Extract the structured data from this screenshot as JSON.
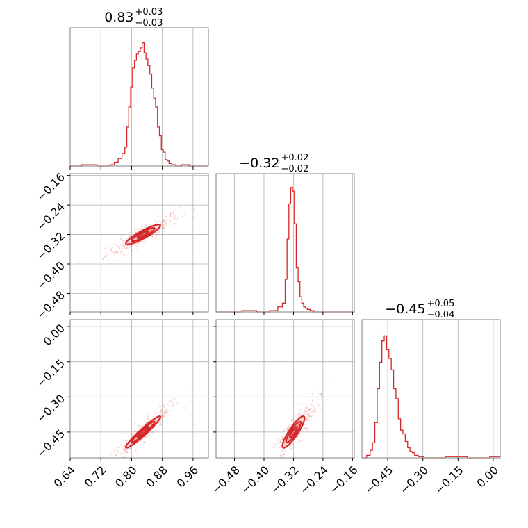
{
  "chart_data": {
    "type": "corner",
    "color": "#d62728",
    "grid": true,
    "params": [
      {
        "title": "0.83",
        "title_plus": "+0.03",
        "title_minus": "−0.03",
        "range": [
          0.64,
          1.0
        ],
        "ticks": [
          0.64,
          0.72,
          0.8,
          0.88,
          0.96
        ],
        "tick_labels": [
          "0.64",
          "0.72",
          "0.80",
          "0.88",
          "0.96"
        ],
        "hist": {
          "x": [
            0.66,
            0.68,
            0.7,
            0.72,
            0.74,
            0.75,
            0.76,
            0.77,
            0.78,
            0.785,
            0.79,
            0.795,
            0.8,
            0.805,
            0.81,
            0.815,
            0.82,
            0.825,
            0.83,
            0.835,
            0.84,
            0.845,
            0.85,
            0.855,
            0.86,
            0.865,
            0.87,
            0.875,
            0.88,
            0.885,
            0.89,
            0.895,
            0.9,
            0.91,
            0.92,
            0.94,
            0.96,
            0.99
          ],
          "density": [
            0.0,
            0.01,
            0.01,
            0.0,
            0.0,
            0.01,
            0.03,
            0.06,
            0.1,
            0.15,
            0.31,
            0.47,
            0.63,
            0.78,
            0.84,
            0.89,
            0.91,
            0.94,
            0.98,
            0.9,
            0.85,
            0.8,
            0.73,
            0.62,
            0.54,
            0.47,
            0.31,
            0.24,
            0.13,
            0.11,
            0.05,
            0.04,
            0.02,
            0.01,
            0.0,
            0.01,
            0.0,
            0.0
          ]
        }
      },
      {
        "title": "−0.32",
        "title_plus": "+0.02",
        "title_minus": "−0.02",
        "range": [
          -0.53,
          -0.155
        ],
        "ticks": [
          -0.48,
          -0.4,
          -0.32,
          -0.24,
          -0.16
        ],
        "tick_labels": [
          "−0.48",
          "−0.40",
          "−0.32",
          "−0.24",
          "−0.16"
        ],
        "hist": {
          "x": [
            -0.52,
            -0.48,
            -0.44,
            -0.4,
            -0.37,
            -0.355,
            -0.345,
            -0.34,
            -0.335,
            -0.33,
            -0.325,
            -0.32,
            -0.315,
            -0.31,
            -0.305,
            -0.3,
            -0.295,
            -0.29,
            -0.285,
            -0.28,
            -0.27,
            -0.26,
            -0.24,
            -0.2
          ],
          "density": [
            0.0,
            0.0,
            0.01,
            0.0,
            0.01,
            0.04,
            0.07,
            0.26,
            0.58,
            0.86,
            0.99,
            0.96,
            0.7,
            0.35,
            0.24,
            0.12,
            0.07,
            0.04,
            0.03,
            0.02,
            0.01,
            0.0,
            0.0,
            0.0
          ]
        }
      },
      {
        "title": "−0.45",
        "title_plus": "+0.05",
        "title_minus": "−0.04",
        "range": [
          -0.56,
          0.03
        ],
        "ticks": [
          -0.45,
          -0.3,
          -0.15,
          0.0
        ],
        "tick_labels": [
          "−0.45",
          "−0.30",
          "−0.15",
          "0.00"
        ],
        "hist": {
          "x": [
            -0.55,
            -0.53,
            -0.52,
            -0.51,
            -0.5,
            -0.49,
            -0.48,
            -0.47,
            -0.46,
            -0.45,
            -0.44,
            -0.43,
            -0.42,
            -0.41,
            -0.4,
            -0.39,
            -0.38,
            -0.37,
            -0.36,
            -0.35,
            -0.34,
            -0.33,
            -0.31,
            -0.28,
            -0.24,
            -0.17,
            -0.05,
            0.02
          ],
          "density": [
            0.0,
            0.02,
            0.06,
            0.12,
            0.28,
            0.55,
            0.76,
            0.93,
            0.97,
            0.86,
            0.79,
            0.7,
            0.55,
            0.47,
            0.31,
            0.22,
            0.19,
            0.13,
            0.08,
            0.05,
            0.04,
            0.02,
            0.01,
            0.0,
            0.0,
            0.01,
            0.0,
            0.01
          ]
        }
      }
    ],
    "pairs": [
      {
        "x_param": 0,
        "y_param": 1,
        "center": [
          0.83,
          -0.32
        ],
        "sd": [
          0.03,
          0.018
        ],
        "rho": 0.9
      },
      {
        "x_param": 0,
        "y_param": 2,
        "center": [
          0.83,
          -0.45
        ],
        "sd": [
          0.03,
          0.045
        ],
        "rho": 0.96
      },
      {
        "x_param": 1,
        "y_param": 2,
        "center": [
          -0.32,
          -0.45
        ],
        "sd": [
          0.02,
          0.045
        ],
        "rho": 0.88
      }
    ]
  }
}
